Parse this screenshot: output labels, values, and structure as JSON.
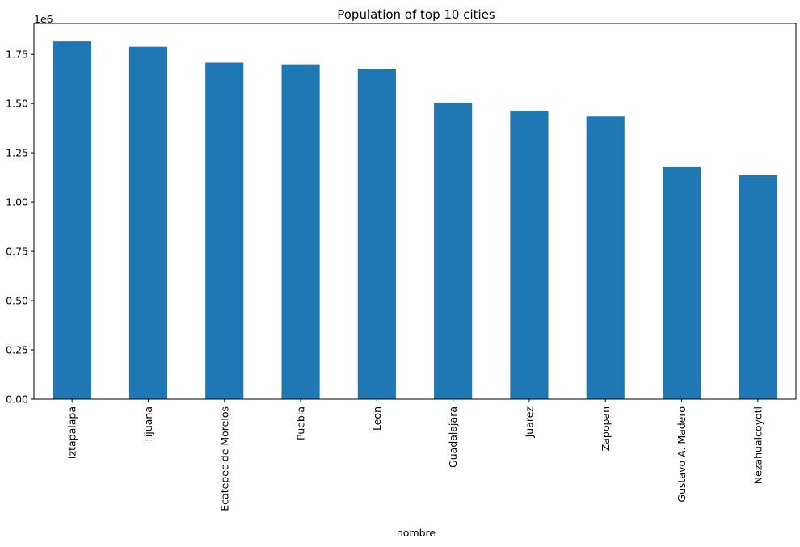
{
  "chart_data": {
    "type": "bar",
    "title": "Population of top 10 cities",
    "xlabel": "nombre",
    "ylabel": "",
    "offset_label": "1e6",
    "categories": [
      "Iztapalapa",
      "Tijuana",
      "Ecatepec de Morelos",
      "Puebla",
      "Leon",
      "Guadalajara",
      "Juarez",
      "Zapopan",
      "Gustavo A. Madero",
      "Nezahualcoyotl"
    ],
    "values": [
      1815786,
      1789000,
      1707754,
      1699000,
      1677000,
      1505000,
      1464000,
      1434000,
      1177000,
      1136300
    ],
    "ylim": [
      0,
      1906575
    ],
    "yticks": [
      0,
      250000,
      500000,
      750000,
      1000000,
      1250000,
      1500000,
      1750000
    ],
    "ytick_labels": [
      "0.00",
      "0.25",
      "0.50",
      "0.75",
      "1.00",
      "1.25",
      "1.50",
      "1.75"
    ],
    "bar_color": "#1f77b4",
    "grid": false,
    "legend": "none"
  }
}
